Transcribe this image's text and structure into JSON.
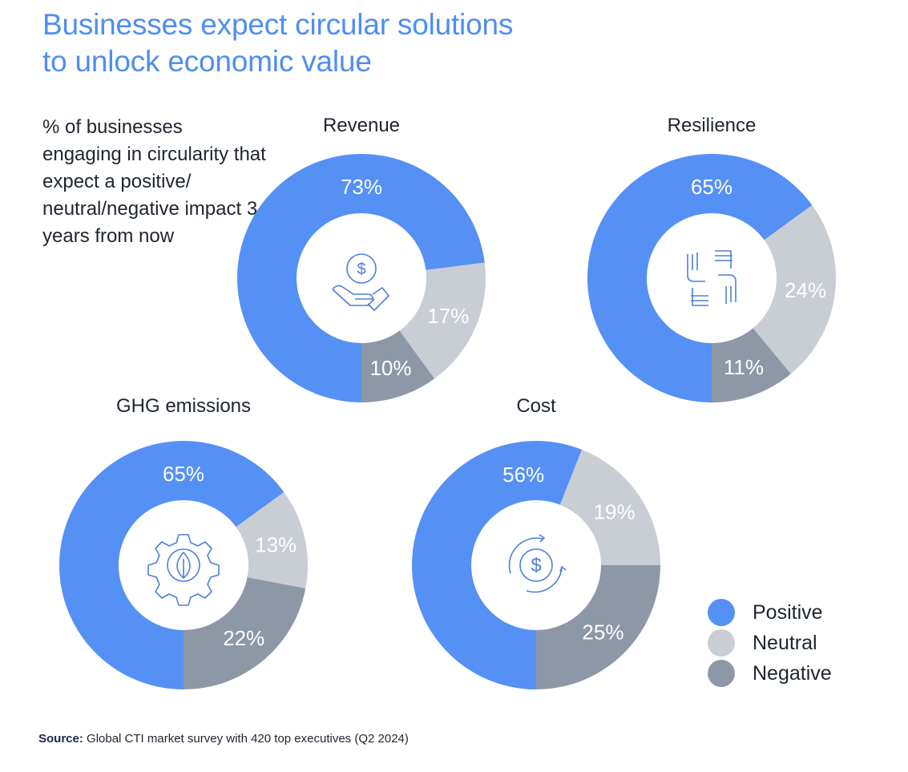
{
  "title_line1": "Businesses expect circular solutions",
  "title_line2": "to unlock economic value",
  "subtitle": "% of businesses engaging in circularity that expect a positive/ neutral/negative impact 3 years from now",
  "colors": {
    "Positive": "#5590f5",
    "Neutral": "#c9cdd4",
    "Negative": "#8e97a6",
    "title": "#4f8ef0"
  },
  "chart_data": [
    {
      "type": "pie",
      "variant": "donut",
      "title": "Revenue",
      "icon": "hand-coin-icon",
      "categories": [
        "Positive",
        "Neutral",
        "Negative"
      ],
      "values": [
        73,
        17,
        10
      ],
      "labels": [
        "73%",
        "17%",
        "10%"
      ]
    },
    {
      "type": "pie",
      "variant": "donut",
      "title": "Resilience",
      "icon": "hands-joined-icon",
      "categories": [
        "Positive",
        "Neutral",
        "Negative"
      ],
      "values": [
        65,
        24,
        11
      ],
      "labels": [
        "65%",
        "24%",
        "11%"
      ]
    },
    {
      "type": "pie",
      "variant": "donut",
      "title": "GHG emissions",
      "icon": "gear-leaf-icon",
      "categories": [
        "Positive",
        "Neutral",
        "Negative"
      ],
      "values": [
        65,
        13,
        22
      ],
      "labels": [
        "65%",
        "13%",
        "22%"
      ]
    },
    {
      "type": "pie",
      "variant": "donut",
      "title": "Cost",
      "icon": "circular-dollar-icon",
      "categories": [
        "Positive",
        "Neutral",
        "Negative"
      ],
      "values": [
        56,
        19,
        25
      ],
      "labels": [
        "56%",
        "19%",
        "25%"
      ]
    }
  ],
  "legend": {
    "placement": "bottom-right",
    "items": [
      "Positive",
      "Neutral",
      "Negative"
    ]
  },
  "source": {
    "label": "Source:",
    "text": " Global CTI market survey with 420 top executives (Q2 2024)"
  }
}
